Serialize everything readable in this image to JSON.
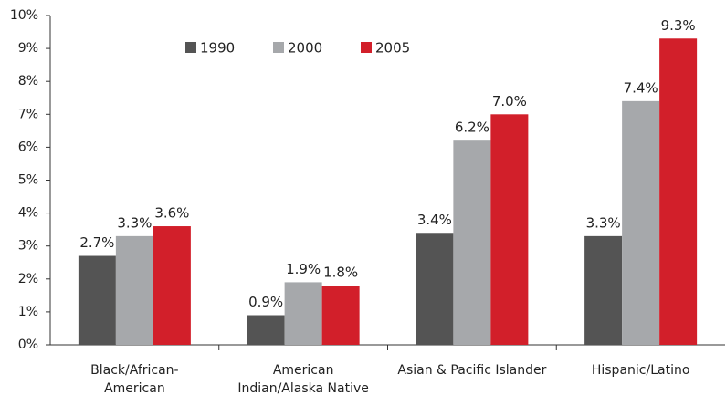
{
  "chart_data": {
    "type": "bar",
    "categories": [
      [
        "Black/African-",
        "American"
      ],
      [
        "American",
        "Indian/Alaska Native"
      ],
      [
        "Asian & Pacific Islander"
      ],
      [
        "Hispanic/Latino"
      ]
    ],
    "series": [
      {
        "name": "1990",
        "color": "#545454",
        "values": [
          2.7,
          0.9,
          3.4,
          3.3
        ],
        "value_labels": [
          "2.7%",
          "0.9%",
          "3.4%",
          "3.3%"
        ]
      },
      {
        "name": "2000",
        "color": "#a6a8ab",
        "values": [
          3.3,
          1.9,
          6.2,
          7.4
        ],
        "value_labels": [
          "3.3%",
          "1.9%",
          "6.2%",
          "7.4%"
        ]
      },
      {
        "name": "2005",
        "color": "#d21f2a",
        "values": [
          3.6,
          1.8,
          7.0,
          9.3
        ],
        "value_labels": [
          "3.6%",
          "1.8%",
          "7.0%",
          "9.3%"
        ]
      }
    ],
    "ylim": [
      0,
      10
    ],
    "yticks": [
      {
        "value": 0,
        "label": "0%"
      },
      {
        "value": 1,
        "label": "1%"
      },
      {
        "value": 2,
        "label": "2%"
      },
      {
        "value": 3,
        "label": "3%"
      },
      {
        "value": 4,
        "label": "4%"
      },
      {
        "value": 5,
        "label": "5%"
      },
      {
        "value": 6,
        "label": "6%"
      },
      {
        "value": 7,
        "label": "7%"
      },
      {
        "value": 8,
        "label": "8%"
      },
      {
        "value": 9,
        "label": "9%"
      },
      {
        "value": 10,
        "label": "10%"
      }
    ],
    "grid": false,
    "legend": "top"
  }
}
